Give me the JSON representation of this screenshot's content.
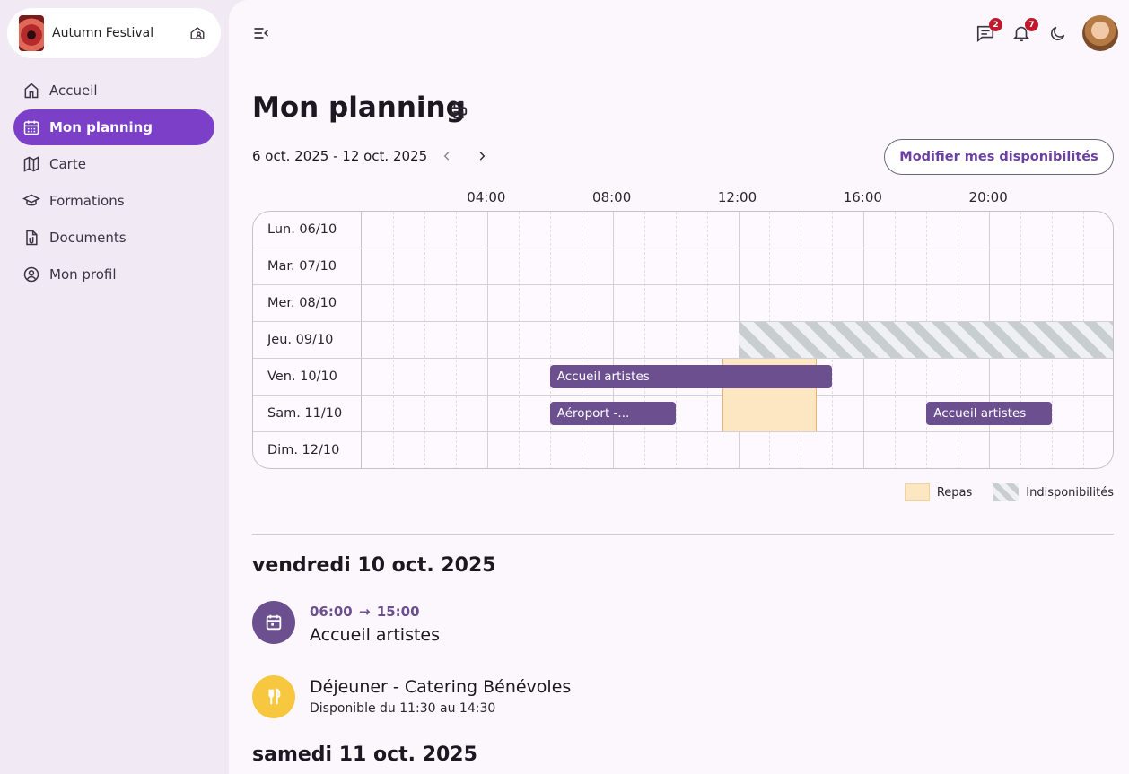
{
  "festival": {
    "name": "Autumn Festival"
  },
  "nav": [
    {
      "label": "Accueil",
      "icon": "home-icon",
      "active": false
    },
    {
      "label": "Mon planning",
      "icon": "calendar-icon",
      "active": true
    },
    {
      "label": "Carte",
      "icon": "map-icon",
      "active": false
    },
    {
      "label": "Formations",
      "icon": "graduation-cap-icon",
      "active": false
    },
    {
      "label": "Documents",
      "icon": "file-icon",
      "active": false
    },
    {
      "label": "Mon profil",
      "icon": "user-circle-icon",
      "active": false
    }
  ],
  "header": {
    "messages_badge": "2",
    "notifications_badge": "7"
  },
  "page": {
    "title": "Mon planning",
    "date_range": "6 oct. 2025 - 12 oct. 2025",
    "modify_button": "Modifier mes disponibilités"
  },
  "calendar": {
    "hours": [
      "04:00",
      "08:00",
      "12:00",
      "16:00",
      "20:00"
    ],
    "days": [
      "Lun. 06/10",
      "Mar. 07/10",
      "Mer. 08/10",
      "Jeu. 09/10",
      "Ven. 10/10",
      "Sam. 11/10",
      "Dim. 12/10"
    ],
    "events": [
      {
        "day": 4,
        "label": "Accueil artistes",
        "start": 6,
        "end": 15
      },
      {
        "day": 5,
        "label": "Aéroport -...",
        "start": 6,
        "end": 10
      },
      {
        "day": 5,
        "label": "Accueil artistes",
        "start": 18,
        "end": 22
      }
    ],
    "meals": [
      {
        "day_start": 4,
        "day_end": 5,
        "start": 11.5,
        "end": 14.5
      }
    ],
    "unavailability": [
      {
        "day": 3,
        "start": 12,
        "end": 24
      }
    ],
    "legend": {
      "meal": "Repas",
      "unavailable": "Indisponibilités"
    }
  },
  "agenda": {
    "day1": {
      "heading": "vendredi 10 oct. 2025",
      "shift_start": "06:00",
      "shift_end": "15:00",
      "shift_title": "Accueil artistes",
      "meal_title": "Déjeuner",
      "meal_separator": " - ",
      "meal_place": "Catering Bénévoles",
      "meal_sub": "Disponible du 11:30 au 14:30"
    },
    "day2": {
      "heading": "samedi 11 oct. 2025"
    }
  },
  "colors": {
    "accent": "#7b3fc8",
    "event": "#6b4f8e",
    "meal": "#fde6c2",
    "meal_icon_bg": "#f7c83f",
    "badge": "#c0192c"
  }
}
